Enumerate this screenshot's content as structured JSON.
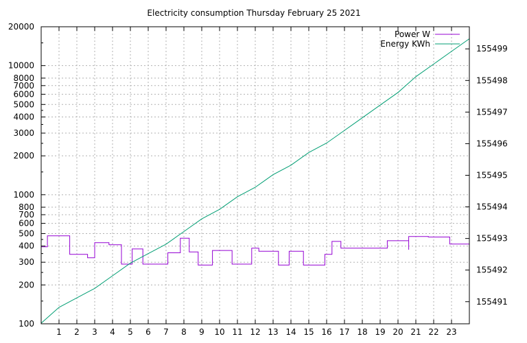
{
  "chart_data": {
    "type": "line",
    "title": "Electricity consumption Thursday February 25 2021",
    "x_ticks": [
      1,
      2,
      3,
      4,
      5,
      6,
      7,
      8,
      9,
      10,
      11,
      12,
      13,
      14,
      15,
      16,
      17,
      18,
      19,
      20,
      21,
      22,
      23
    ],
    "x_range": [
      0,
      24
    ],
    "y_left": {
      "scale": "log",
      "range": [
        100,
        20000
      ],
      "ticks": [
        100,
        200,
        300,
        400,
        500,
        600,
        700,
        800,
        1000,
        2000,
        3000,
        4000,
        5000,
        6000,
        7000,
        8000,
        10000,
        20000
      ]
    },
    "y_right": {
      "scale": "linear",
      "range": [
        155490.3,
        155499.7
      ],
      "ticks": [
        155491,
        155492,
        155493,
        155494,
        155495,
        155496,
        155497,
        155498,
        155499
      ]
    },
    "grid": true,
    "legend_position": "top-right",
    "series": [
      {
        "name": "Power W",
        "axis": "left",
        "color": "#9400d3",
        "step": true,
        "points": [
          [
            0,
            395
          ],
          [
            0.3,
            395
          ],
          [
            0.35,
            480
          ],
          [
            1,
            480
          ],
          [
            1.6,
            345
          ],
          [
            2.3,
            345
          ],
          [
            2.6,
            325
          ],
          [
            2.8,
            325
          ],
          [
            3.0,
            425
          ],
          [
            3.5,
            425
          ],
          [
            3.8,
            410
          ],
          [
            4.4,
            410
          ],
          [
            4.5,
            300
          ],
          [
            4.5,
            290
          ],
          [
            4.9,
            290
          ],
          [
            5.1,
            380
          ],
          [
            5.2,
            380
          ],
          [
            5.6,
            380
          ],
          [
            5.7,
            290
          ],
          [
            6.9,
            290
          ],
          [
            7.1,
            355
          ],
          [
            7.6,
            355
          ],
          [
            7.8,
            460
          ],
          [
            8.2,
            460
          ],
          [
            8.3,
            360
          ],
          [
            8.6,
            360
          ],
          [
            8.8,
            285
          ],
          [
            9.4,
            285
          ],
          [
            9.6,
            370
          ],
          [
            10.6,
            370
          ],
          [
            10.7,
            290
          ],
          [
            11.7,
            290
          ],
          [
            11.8,
            385
          ],
          [
            12.1,
            385
          ],
          [
            12.2,
            365
          ],
          [
            13.2,
            365
          ],
          [
            13.3,
            285
          ],
          [
            13.8,
            285
          ],
          [
            13.9,
            365
          ],
          [
            14.5,
            365
          ],
          [
            14.7,
            285
          ],
          [
            15.8,
            285
          ],
          [
            15.9,
            345
          ],
          [
            16.2,
            345
          ],
          [
            16.3,
            435
          ],
          [
            16.7,
            435
          ],
          [
            16.8,
            385
          ],
          [
            19.3,
            385
          ],
          [
            19.4,
            440
          ],
          [
            20.6,
            440
          ],
          [
            20.6,
            375
          ],
          [
            20.6,
            475
          ],
          [
            21.6,
            475
          ],
          [
            21.7,
            470
          ],
          [
            22.8,
            470
          ],
          [
            22.9,
            415
          ],
          [
            24.0,
            415
          ],
          [
            24.0,
            430
          ]
        ]
      },
      {
        "name": "Energy KWh",
        "axis": "right",
        "color": "#009e73",
        "step": false,
        "points": [
          [
            0,
            155490.32
          ],
          [
            1,
            155490.82
          ],
          [
            2,
            155491.12
          ],
          [
            3,
            155491.42
          ],
          [
            4,
            155491.82
          ],
          [
            5,
            155492.22
          ],
          [
            6,
            155492.52
          ],
          [
            7,
            155492.82
          ],
          [
            8,
            155493.22
          ],
          [
            9,
            155493.62
          ],
          [
            10,
            155493.92
          ],
          [
            11,
            155494.32
          ],
          [
            12,
            155494.62
          ],
          [
            13,
            155495.02
          ],
          [
            14,
            155495.32
          ],
          [
            15,
            155495.72
          ],
          [
            16,
            155496.02
          ],
          [
            17,
            155496.42
          ],
          [
            18,
            155496.82
          ],
          [
            19,
            155497.22
          ],
          [
            20,
            155497.62
          ],
          [
            21,
            155498.12
          ],
          [
            22,
            155498.52
          ],
          [
            23,
            155498.92
          ],
          [
            24,
            155499.32
          ]
        ]
      }
    ]
  }
}
